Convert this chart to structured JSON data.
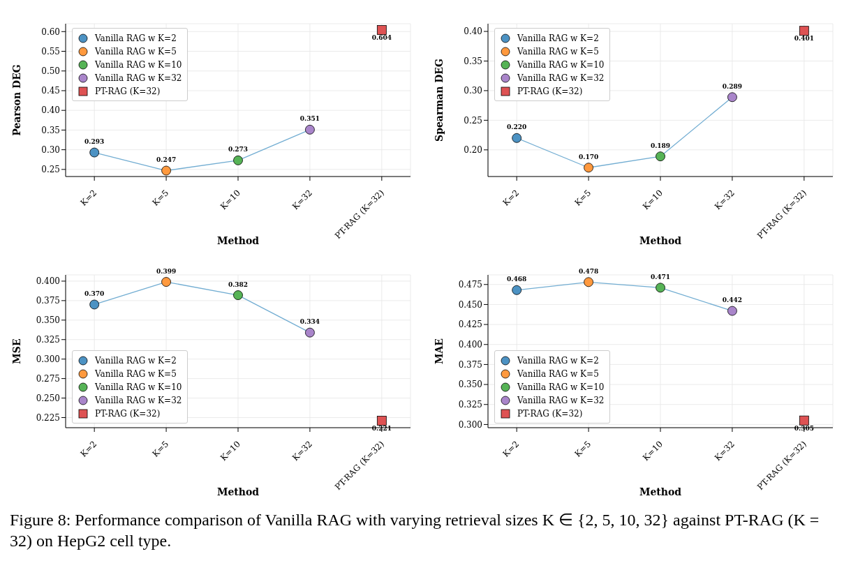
{
  "chart_data": [
    {
      "type": "line",
      "xlabel": "Method",
      "ylabel": "Pearson DEG",
      "categories": [
        "K=2",
        "K=5",
        "K=10",
        "K=32",
        "PT-RAG (K=32)"
      ],
      "ylim": [
        0.232,
        0.62
      ],
      "yticks": [
        0.25,
        {
          "value": 0.3,
          "label": "0.30"
        },
        0.35,
        {
          "value": 0.4,
          "label": "0.40"
        },
        0.45,
        {
          "value": 0.5,
          "label": "0.50"
        },
        0.55,
        {
          "value": 0.6,
          "label": "0.60"
        }
      ],
      "grid": true,
      "legend": "top left",
      "series": [
        {
          "type": "line",
          "color": "#72add2",
          "marker": "none",
          "values": [
            0.293,
            0.247,
            0.273,
            0.351,
            null
          ]
        },
        {
          "type": "scatter",
          "name": "Vanilla RAG w K=2",
          "color": "#4c92c3",
          "marker": "circle",
          "values": [
            0.293,
            null,
            null,
            null,
            null
          ],
          "value_labels": [
            "0.293",
            null,
            null,
            null,
            null
          ]
        },
        {
          "type": "scatter",
          "name": "Vanilla RAG w K=5",
          "color": "#ff993e",
          "marker": "circle",
          "values": [
            null,
            0.247,
            null,
            null,
            null
          ],
          "value_labels": [
            null,
            "0.247",
            null,
            null,
            null
          ]
        },
        {
          "type": "scatter",
          "name": "Vanilla RAG w K=10",
          "color": "#56b356",
          "marker": "circle",
          "values": [
            null,
            null,
            0.273,
            null,
            null
          ],
          "value_labels": [
            null,
            null,
            "0.273",
            null,
            null
          ]
        },
        {
          "type": "scatter",
          "name": "Vanilla RAG w K=32",
          "color": "#a985ca",
          "marker": "circle",
          "values": [
            null,
            null,
            null,
            0.351,
            null
          ],
          "value_labels": [
            null,
            null,
            null,
            "0.351",
            null
          ]
        },
        {
          "type": "scatter",
          "name": "PT-RAG (K=32)",
          "color": "#de5253",
          "marker": "square",
          "values": [
            null,
            null,
            null,
            null,
            0.604
          ],
          "value_labels": [
            null,
            null,
            null,
            null,
            "0.604"
          ]
        }
      ]
    },
    {
      "type": "line",
      "xlabel": "Method",
      "ylabel": "Spearman DEG",
      "categories": [
        "K=2",
        "K=5",
        "K=10",
        "K=32",
        "PT-RAG (K=32)"
      ],
      "ylim": [
        0.155,
        0.413
      ],
      "yticks": [
        {
          "value": 0.2,
          "label": "0.20"
        },
        0.25,
        {
          "value": 0.3,
          "label": "0.30"
        },
        0.35,
        {
          "value": 0.4,
          "label": "0.40"
        }
      ],
      "grid": true,
      "legend": "top left",
      "series": [
        {
          "type": "line",
          "color": "#72add2",
          "marker": "none",
          "values": [
            0.22,
            0.17,
            0.189,
            0.289,
            null
          ]
        },
        {
          "type": "scatter",
          "name": "Vanilla RAG w K=2",
          "color": "#4c92c3",
          "marker": "circle",
          "values": [
            0.22,
            null,
            null,
            null,
            null
          ],
          "value_labels": [
            "0.220",
            null,
            null,
            null,
            null
          ]
        },
        {
          "type": "scatter",
          "name": "Vanilla RAG w K=5",
          "color": "#ff993e",
          "marker": "circle",
          "values": [
            null,
            0.17,
            null,
            null,
            null
          ],
          "value_labels": [
            null,
            "0.170",
            null,
            null,
            null
          ]
        },
        {
          "type": "scatter",
          "name": "Vanilla RAG w K=10",
          "color": "#56b356",
          "marker": "circle",
          "values": [
            null,
            null,
            0.189,
            null,
            null
          ],
          "value_labels": [
            null,
            null,
            "0.189",
            null,
            null
          ]
        },
        {
          "type": "scatter",
          "name": "Vanilla RAG w K=32",
          "color": "#a985ca",
          "marker": "circle",
          "values": [
            null,
            null,
            null,
            0.289,
            null
          ],
          "value_labels": [
            null,
            null,
            null,
            "0.289",
            null
          ]
        },
        {
          "type": "scatter",
          "name": "PT-RAG (K=32)",
          "color": "#de5253",
          "marker": "square",
          "values": [
            null,
            null,
            null,
            null,
            0.401
          ],
          "value_labels": [
            null,
            null,
            null,
            null,
            "0.401"
          ]
        }
      ]
    },
    {
      "type": "line",
      "xlabel": "Method",
      "ylabel": "MSE",
      "categories": [
        "K=2",
        "K=5",
        "K=10",
        "K=32",
        "PT-RAG (K=32)"
      ],
      "ylim": [
        0.212,
        0.408
      ],
      "yticks": [
        0.225,
        {
          "value": 0.25,
          "label": "0.250"
        },
        0.275,
        {
          "value": 0.3,
          "label": "0.300"
        },
        0.325,
        {
          "value": 0.35,
          "label": "0.350"
        },
        0.375,
        {
          "value": 0.4,
          "label": "0.400"
        }
      ],
      "grid": true,
      "legend": "bottom left",
      "series": [
        {
          "type": "line",
          "color": "#72add2",
          "marker": "none",
          "values": [
            0.37,
            0.399,
            0.382,
            0.334,
            null
          ]
        },
        {
          "type": "scatter",
          "name": "Vanilla RAG w K=2",
          "color": "#4c92c3",
          "marker": "circle",
          "values": [
            0.37,
            null,
            null,
            null,
            null
          ],
          "value_labels": [
            "0.370",
            null,
            null,
            null,
            null
          ]
        },
        {
          "type": "scatter",
          "name": "Vanilla RAG w K=5",
          "color": "#ff993e",
          "marker": "circle",
          "values": [
            null,
            0.399,
            null,
            null,
            null
          ],
          "value_labels": [
            null,
            "0.399",
            null,
            null,
            null
          ]
        },
        {
          "type": "scatter",
          "name": "Vanilla RAG w K=10",
          "color": "#56b356",
          "marker": "circle",
          "values": [
            null,
            null,
            0.382,
            null,
            null
          ],
          "value_labels": [
            null,
            null,
            "0.382",
            null,
            null
          ]
        },
        {
          "type": "scatter",
          "name": "Vanilla RAG w K=32",
          "color": "#a985ca",
          "marker": "circle",
          "values": [
            null,
            null,
            null,
            0.334,
            null
          ],
          "value_labels": [
            null,
            null,
            null,
            "0.334",
            null
          ]
        },
        {
          "type": "scatter",
          "name": "PT-RAG (K=32)",
          "color": "#de5253",
          "marker": "square",
          "values": [
            null,
            null,
            null,
            null,
            0.221
          ],
          "value_labels": [
            null,
            null,
            null,
            null,
            "0.221"
          ]
        }
      ]
    },
    {
      "type": "line",
      "xlabel": "Method",
      "ylabel": "MAE",
      "categories": [
        "K=2",
        "K=5",
        "K=10",
        "K=32",
        "PT-RAG (K=32)"
      ],
      "ylim": [
        0.296,
        0.487
      ],
      "yticks": [
        {
          "value": 0.3,
          "label": "0.300"
        },
        0.325,
        {
          "value": 0.35,
          "label": "0.350"
        },
        0.375,
        {
          "value": 0.4,
          "label": "0.400"
        },
        0.425,
        {
          "value": 0.45,
          "label": "0.450"
        },
        0.475
      ],
      "grid": true,
      "legend": "bottom left",
      "annotations": [
        "Figure 8: Performance comparison of Vanilla RAG with varying retrieval sizes K ∈ {2, 5, 10, 32} against PT-RAG (K = 32) on HepG2 cell type."
      ],
      "series": [
        {
          "type": "line",
          "color": "#72add2",
          "marker": "none",
          "values": [
            0.468,
            0.478,
            0.471,
            0.442,
            null
          ]
        },
        {
          "type": "scatter",
          "name": "Vanilla RAG w K=2",
          "color": "#4c92c3",
          "marker": "circle",
          "values": [
            0.468,
            null,
            null,
            null,
            null
          ],
          "value_labels": [
            "0.468",
            null,
            null,
            null,
            null
          ]
        },
        {
          "type": "scatter",
          "name": "Vanilla RAG w K=5",
          "color": "#ff993e",
          "marker": "circle",
          "values": [
            null,
            0.478,
            null,
            null,
            null
          ],
          "value_labels": [
            null,
            "0.478",
            null,
            null,
            null
          ]
        },
        {
          "type": "scatter",
          "name": "Vanilla RAG w K=10",
          "color": "#56b356",
          "marker": "circle",
          "values": [
            null,
            null,
            0.471,
            null,
            null
          ],
          "value_labels": [
            null,
            null,
            "0.471",
            null,
            null
          ]
        },
        {
          "type": "scatter",
          "name": "Vanilla RAG w K=32",
          "color": "#a985ca",
          "marker": "circle",
          "values": [
            null,
            null,
            null,
            0.442,
            null
          ],
          "value_labels": [
            null,
            null,
            null,
            "0.442",
            null
          ]
        },
        {
          "type": "scatter",
          "name": "PT-RAG (K=32)",
          "color": "#de5253",
          "marker": "square",
          "values": [
            null,
            null,
            null,
            null,
            0.305
          ],
          "value_labels": [
            null,
            null,
            null,
            null,
            "0.305"
          ]
        }
      ]
    }
  ]
}
